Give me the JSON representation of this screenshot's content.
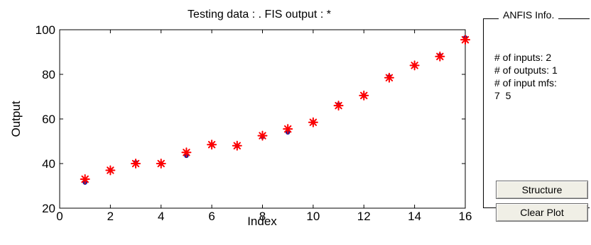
{
  "window": {
    "plot_title": "Testing data : .    FIS output : *"
  },
  "info_panel": {
    "title": "ANFIS Info.",
    "lines": [
      "# of inputs: 2",
      "# of outputs: 1",
      "# of input mfs:",
      "7  5"
    ],
    "structure_button": "Structure",
    "clear_plot_button": "Clear Plot"
  },
  "colors": {
    "testing_marker": "#1a1a99",
    "fis_marker": "#ff0000"
  },
  "chart_data": {
    "type": "scatter",
    "title": "Testing data : .    FIS output : *",
    "xlabel": "Index",
    "ylabel": "Output",
    "xlim": [
      0,
      16
    ],
    "ylim": [
      20,
      100
    ],
    "xticks": [
      0,
      2,
      4,
      6,
      8,
      10,
      12,
      14,
      16
    ],
    "yticks": [
      20,
      40,
      60,
      80,
      100
    ],
    "grid": false,
    "x": [
      1,
      2,
      3,
      4,
      5,
      6,
      7,
      8,
      9,
      10,
      11,
      12,
      13,
      14,
      15,
      16
    ],
    "series": [
      {
        "marker": "dot",
        "values": [
          31.5,
          37.0,
          40.5,
          40.0,
          43.5,
          48.5,
          48.0,
          52.0,
          54.0,
          58.5,
          66.5,
          70.5,
          79.0,
          84.0,
          88.5,
          96.5
        ]
      },
      {
        "marker": "star",
        "values": [
          33.0,
          37.0,
          40.0,
          40.0,
          45.0,
          48.5,
          48.0,
          52.5,
          55.5,
          58.5,
          66.0,
          70.5,
          78.5,
          84.0,
          88.0,
          95.5
        ]
      }
    ]
  }
}
